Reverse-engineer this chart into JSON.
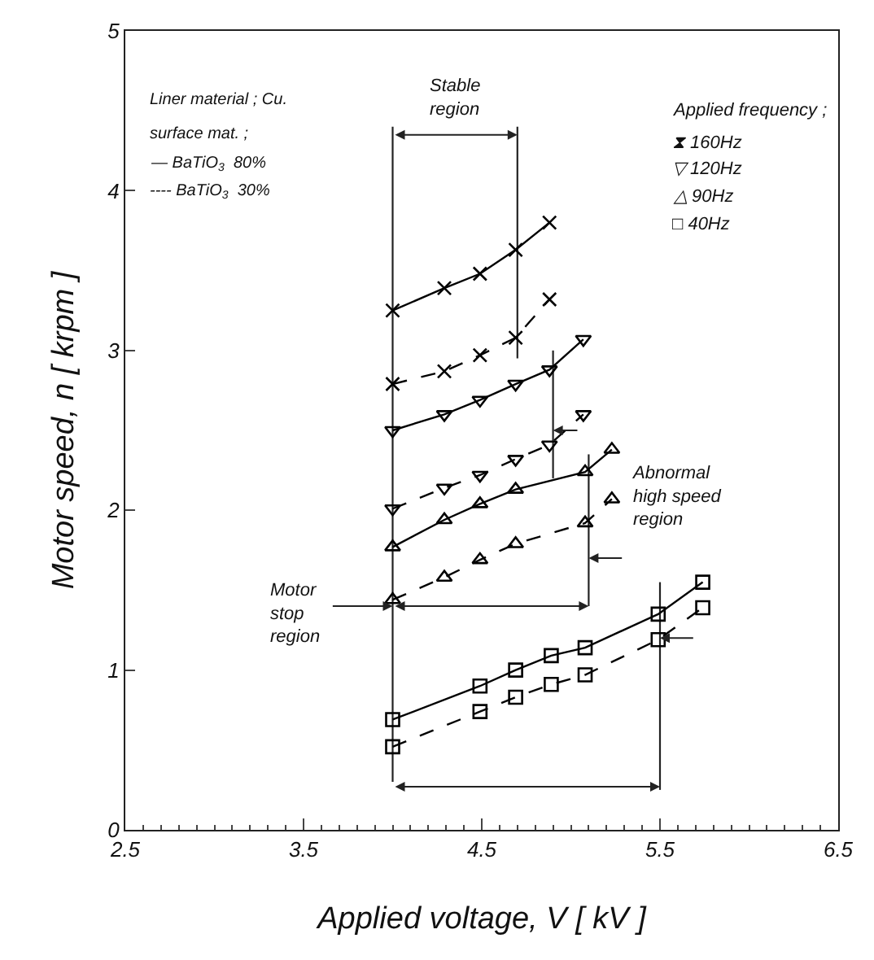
{
  "chart_data": {
    "type": "line",
    "xlabel": "Applied voltage, V [ kV ]",
    "ylabel": "Motor speed, n [ krpm ]",
    "xlim": [
      2.5,
      6.5
    ],
    "xticks": [
      2.5,
      3.5,
      4.5,
      5.5,
      6.5
    ],
    "ylim": [
      0,
      5
    ],
    "yticks": [
      0,
      1,
      2,
      3,
      4,
      5
    ],
    "series": [
      {
        "color": "#000000",
        "marker": "cross",
        "line_style": "solid",
        "x": [
          4.0,
          4.29,
          4.49,
          4.69,
          4.88
        ],
        "values": [
          3.25,
          3.39,
          3.48,
          3.63,
          3.8
        ]
      },
      {
        "color": "#000000",
        "marker": "cross",
        "line_style": "dashed",
        "x": [
          4.0,
          4.29,
          4.49,
          4.69,
          4.88
        ],
        "values": [
          2.79,
          2.87,
          2.97,
          3.08,
          3.32
        ]
      },
      {
        "color": "#000000",
        "marker": "triangle-down",
        "line_style": "solid",
        "x": [
          4.0,
          4.29,
          4.49,
          4.69,
          4.88,
          5.07
        ],
        "values": [
          2.5,
          2.6,
          2.69,
          2.79,
          2.88,
          3.07
        ]
      },
      {
        "color": "#000000",
        "marker": "triangle-down",
        "line_style": "dashed",
        "x": [
          4.0,
          4.29,
          4.49,
          4.69,
          4.88,
          5.07
        ],
        "values": [
          2.01,
          2.14,
          2.22,
          2.32,
          2.41,
          2.6
        ]
      },
      {
        "color": "#000000",
        "marker": "triangle",
        "line_style": "solid",
        "x": [
          4.0,
          4.29,
          4.49,
          4.69,
          5.08,
          5.23
        ],
        "values": [
          1.77,
          1.94,
          2.04,
          2.13,
          2.24,
          2.38
        ]
      },
      {
        "color": "#000000",
        "marker": "triangle",
        "line_style": "dashed",
        "x": [
          4.0,
          4.29,
          4.49,
          4.69,
          5.08,
          5.23
        ],
        "values": [
          1.44,
          1.58,
          1.69,
          1.79,
          1.92,
          2.07
        ]
      },
      {
        "color": "#000000",
        "marker": "square",
        "line_style": "solid",
        "x": [
          4.0,
          4.49,
          4.69,
          4.89,
          5.08,
          5.49,
          5.74
        ],
        "values": [
          0.69,
          0.9,
          1.0,
          1.09,
          1.14,
          1.35,
          1.55
        ]
      },
      {
        "color": "#000000",
        "marker": "square",
        "line_style": "dashed",
        "x": [
          4.0,
          4.49,
          4.69,
          4.89,
          5.08,
          5.49,
          5.74
        ],
        "values": [
          0.52,
          0.74,
          0.83,
          0.91,
          0.97,
          1.19,
          1.39
        ]
      }
    ],
    "ref_lines": [
      {
        "axis": "x",
        "value": 4.0
      },
      {
        "axis": "x",
        "value": 4.7
      },
      {
        "axis": "x",
        "value": 4.9
      },
      {
        "axis": "x",
        "value": 5.1
      },
      {
        "axis": "x",
        "value": 5.5
      }
    ],
    "annotations": [
      "Liner material ; Cu.",
      "surface mat. ;",
      "— BaTiO$_{3}$  80%",
      "---- BaTiO$_{3}$  30%",
      "Applied frequency ;",
      "⧗ 160Hz",
      "▽ 120Hz",
      "△ 90Hz",
      "□ 40Hz",
      {
        "text": "Stable\nregion",
        "x": 4.7,
        "y": 4.35
      },
      {
        "text": "Motor\nstop\nregion",
        "x": 4.0,
        "y": 1.4
      },
      {
        "text": "Abnormal\nhigh speed\nregion",
        "x": 5.1,
        "y": 1.7
      }
    ]
  }
}
